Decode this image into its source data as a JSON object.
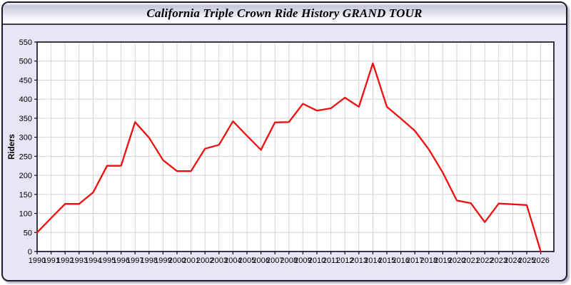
{
  "window": {
    "title": "California Triple Crown Ride History GRAND TOUR"
  },
  "colors": {
    "panel_bg": "#e6e6f7",
    "plot_bg": "#ffffff",
    "grid": "#d4d4d4",
    "frame": "#0a0a14",
    "line": "#ee0e0e",
    "text": "#000000"
  },
  "chart_data": {
    "type": "line",
    "title": "California Triple Crown Ride History GRAND TOUR",
    "xlabel": "",
    "ylabel": "Riders",
    "ylim": [
      0,
      550
    ],
    "ytick_step": 50,
    "grid": true,
    "legend_position": "none",
    "x": [
      1990,
      1991,
      1992,
      1993,
      1994,
      1995,
      1996,
      1997,
      1998,
      1999,
      2000,
      2001,
      2002,
      2003,
      2004,
      2005,
      2006,
      2007,
      2008,
      2009,
      2010,
      2011,
      2012,
      2013,
      2014,
      2015,
      2016,
      2017,
      2018,
      2019,
      2020,
      2021,
      2022,
      2023,
      2024,
      2025,
      2026
    ],
    "series": [
      {
        "name": "Riders",
        "values": [
          50,
          88,
          125,
          125,
          155,
          225,
          225,
          340,
          299,
          240,
          211,
          211,
          270,
          280,
          342,
          304,
          267,
          339,
          340,
          388,
          370,
          376,
          404,
          380,
          494,
          380,
          349,
          317,
          268,
          207,
          134,
          127,
          77,
          126,
          124,
          122,
          0
        ]
      }
    ]
  }
}
